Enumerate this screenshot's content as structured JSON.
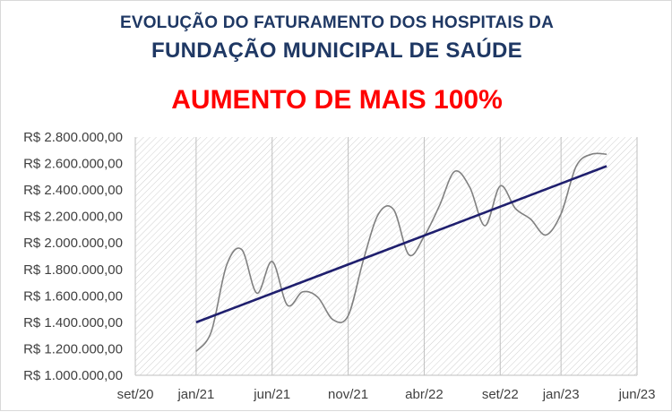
{
  "header": {
    "title_line1": "EVOLUÇÃO DO FATURAMENTO DOS HOSPITAIS DA",
    "title_line2": "FUNDAÇÃO  MUNICIPAL DE SAÚDE",
    "highlight": "AUMENTO DE MAIS 100%"
  },
  "colors": {
    "title": "#1f3864",
    "highlight": "#ff0000",
    "series_line": "#808080",
    "trend_line": "#1f1f6e",
    "plot_hatch": "#d0d0d0"
  },
  "chart_data": {
    "type": "line",
    "title": "EVOLUÇÃO DO FATURAMENTO DOS HOSPITAIS DA FUNDAÇÃO  MUNICIPAL DE SAÚDE",
    "subtitle": "AUMENTO DE MAIS 100%",
    "xlabel": "",
    "ylabel": "",
    "x_tick_labels": [
      "set/20",
      "jan/21",
      "jun/21",
      "nov/21",
      "abr/22",
      "set/22",
      "jan/23",
      "jun/23"
    ],
    "x_tick_months": [
      0,
      4,
      9,
      14,
      19,
      24,
      28,
      33
    ],
    "xlim": [
      "set/20",
      "jun/23"
    ],
    "y_tick_labels": [
      "R$ 1.000.000,00",
      "R$ 1.200.000,00",
      "R$ 1.400.000,00",
      "R$ 1.600.000,00",
      "R$ 1.800.000,00",
      "R$ 2.000.000,00",
      "R$ 2.200.000,00",
      "R$ 2.400.000,00",
      "R$ 2.600.000,00",
      "R$ 2.800.000,00"
    ],
    "ylim": [
      1000000,
      2800000
    ],
    "grid": "vertical",
    "series": [
      {
        "style": "smooth",
        "x": [
          "jan/21",
          "fev/21",
          "mar/21",
          "abr/21",
          "mai/21",
          "jun/21",
          "jul/21",
          "ago/21",
          "set/21",
          "out/21",
          "nov/21",
          "dez/21",
          "jan/22",
          "fev/22",
          "mar/22",
          "abr/22",
          "mai/22",
          "jun/22",
          "jul/22",
          "ago/22",
          "set/22",
          "out/22",
          "nov/22",
          "dez/22",
          "jan/23",
          "fev/23",
          "mar/23",
          "abr/23"
        ],
        "values": [
          1180000,
          1330000,
          1830000,
          1950000,
          1620000,
          1860000,
          1530000,
          1630000,
          1590000,
          1420000,
          1450000,
          1870000,
          2220000,
          2250000,
          1910000,
          2050000,
          2280000,
          2540000,
          2420000,
          2130000,
          2430000,
          2260000,
          2180000,
          2060000,
          2220000,
          2580000,
          2670000,
          2670000
        ]
      },
      {
        "style": "trend",
        "x": [
          "jan/21",
          "abr/23"
        ],
        "values": [
          1400000,
          2580000
        ]
      }
    ]
  }
}
